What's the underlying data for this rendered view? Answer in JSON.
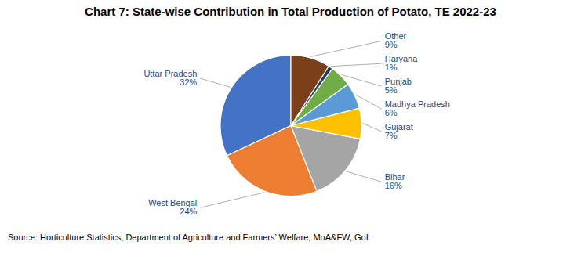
{
  "chart_data": {
    "type": "pie",
    "title": "Chart 7: State-wise Contribution in Total Production of Potato, TE 2022-23",
    "categories": [
      "Uttar Pradesh",
      "West Bengal",
      "Bihar",
      "Gujarat",
      "Madhya Pradesh",
      "Punjab",
      "Haryana",
      "Other"
    ],
    "values": [
      32,
      24,
      16,
      7,
      6,
      5,
      1,
      9
    ],
    "value_labels": [
      "32%",
      "24%",
      "16%",
      "7%",
      "6%",
      "5%",
      "1%",
      "9%"
    ],
    "colors": [
      "#4472C4",
      "#ED7D31",
      "#A5A5A5",
      "#FFC000",
      "#5B9BD5",
      "#70AD47",
      "#243F60",
      "#7B3F1A"
    ],
    "data_labels": true,
    "annotations": [
      "Source: Horticulture Statistics, Department of Agriculture and Farmers’ Welfare, MoA&FW, GoI."
    ]
  }
}
